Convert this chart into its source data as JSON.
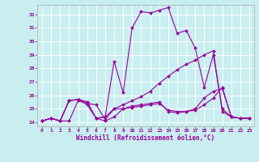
{
  "xlabel": "Windchill (Refroidissement éolien,°C)",
  "background_color": "#c8eef0",
  "line_color": "#990099",
  "grid_color": "#ffffff",
  "xlim": [
    -0.5,
    23.5
  ],
  "ylim": [
    23.7,
    32.7
  ],
  "xticks": [
    0,
    1,
    2,
    3,
    4,
    5,
    6,
    7,
    8,
    9,
    10,
    11,
    12,
    13,
    14,
    15,
    16,
    17,
    18,
    19,
    20,
    21,
    22,
    23
  ],
  "yticks": [
    24,
    25,
    26,
    27,
    28,
    29,
    30,
    31,
    32
  ],
  "series": [
    [
      24.1,
      24.3,
      24.1,
      25.6,
      25.7,
      25.5,
      24.3,
      24.4,
      28.5,
      26.2,
      31.0,
      32.2,
      32.1,
      32.3,
      32.5,
      30.6,
      30.8,
      29.5,
      26.6,
      29.0,
      25.0,
      24.4,
      24.3,
      24.3
    ],
    [
      24.1,
      24.3,
      24.1,
      24.1,
      25.6,
      25.4,
      25.3,
      24.2,
      25.0,
      25.0,
      25.2,
      25.3,
      25.4,
      25.5,
      24.8,
      24.7,
      24.8,
      25.0,
      25.8,
      26.3,
      26.5,
      24.4,
      24.3,
      24.3
    ],
    [
      24.1,
      24.3,
      24.1,
      25.6,
      25.7,
      25.5,
      24.3,
      24.4,
      25.0,
      25.3,
      25.6,
      25.9,
      26.3,
      26.9,
      27.4,
      27.9,
      28.3,
      28.6,
      29.0,
      29.3,
      24.8,
      24.4,
      24.3,
      24.3
    ],
    [
      24.1,
      24.3,
      24.1,
      25.6,
      25.7,
      25.3,
      24.3,
      24.1,
      24.4,
      25.0,
      25.1,
      25.2,
      25.3,
      25.4,
      24.9,
      24.8,
      24.8,
      24.9,
      25.3,
      25.8,
      26.6,
      24.4,
      24.3,
      24.3
    ]
  ]
}
